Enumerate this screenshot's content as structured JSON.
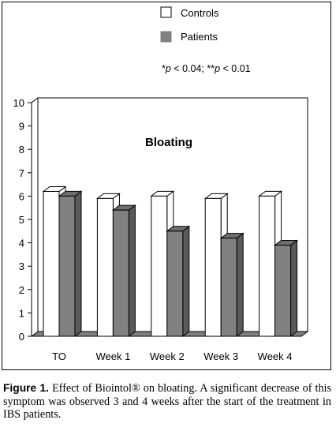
{
  "chart_data": {
    "type": "bar",
    "title": "Bloating",
    "categories": [
      "TO",
      "Week 1",
      "Week 2",
      "Week 3",
      "Week 4"
    ],
    "series": [
      {
        "name": "Controls",
        "values": [
          6.2,
          5.9,
          6.0,
          5.9,
          6.0
        ],
        "color": "#ffffff"
      },
      {
        "name": "Patients",
        "values": [
          6.0,
          5.4,
          4.5,
          4.2,
          3.9
        ],
        "color": "#808080"
      }
    ],
    "yticks": [
      "0",
      "1",
      "2",
      "3",
      "4",
      "5",
      "6",
      "7",
      "8",
      "9",
      "10"
    ],
    "ylim": [
      0,
      10
    ],
    "grid": false,
    "style": "3d",
    "legend_position": "top",
    "annotation": {
      "p1_var": "p",
      "p1_rest": " < 0.04; ",
      "p2_var": "p",
      "p2_rest": " < 0.01",
      "star1": "*",
      "star2": "**"
    }
  },
  "caption": {
    "label": "Figure 1.",
    "text": " Effect of Biointol® on bloating. A significant decrease of this symptom was observed 3 and 4 weeks after the start of the treatment in IBS patients."
  }
}
